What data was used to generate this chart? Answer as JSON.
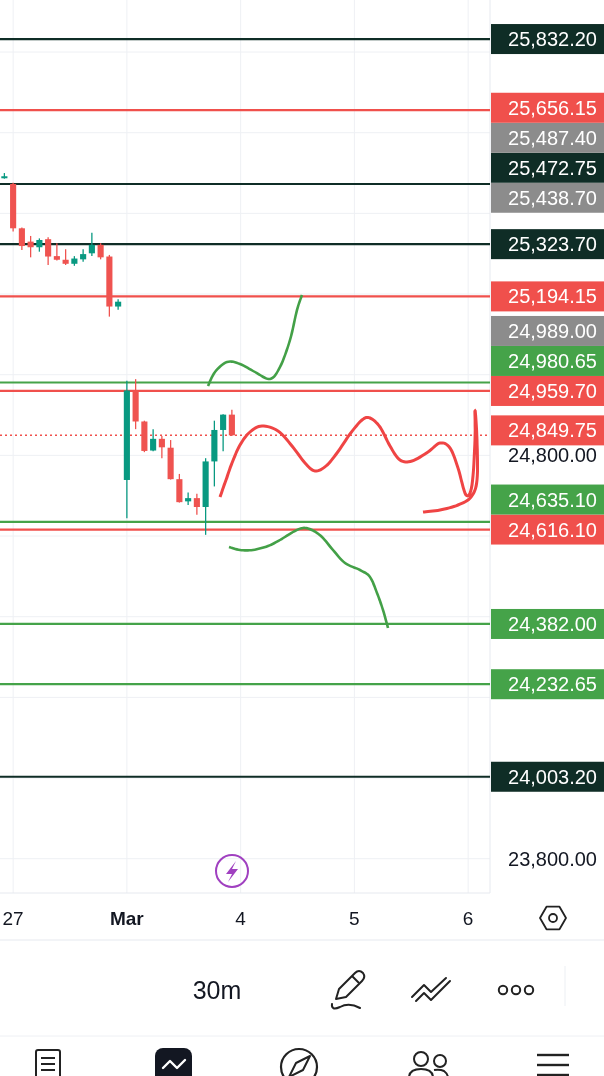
{
  "chart_data": {
    "type": "candlestick",
    "categories": [
      null,
      "27",
      null,
      null,
      null,
      null,
      null,
      null,
      null,
      null,
      null,
      null,
      null,
      null,
      "Mar",
      null,
      null,
      null,
      null,
      null,
      null,
      null,
      null,
      null,
      null,
      null,
      null,
      "4",
      null,
      null,
      null,
      null,
      null,
      null,
      null,
      null,
      null,
      null,
      null,
      null,
      "5",
      null,
      null,
      null,
      null,
      null,
      null,
      null,
      null,
      null,
      null,
      null,
      null,
      "6",
      null,
      null
    ],
    "ohlc": [
      [
        25487,
        25500,
        25486,
        25492
      ],
      [
        25473,
        25476,
        25355,
        25363
      ],
      [
        25363,
        25365,
        25309,
        25319
      ],
      [
        25330,
        25344,
        25291,
        25316
      ],
      [
        25316,
        25338,
        25305,
        25334
      ],
      [
        25336,
        25341,
        25272,
        25293
      ],
      [
        25294,
        25326,
        25283,
        25285
      ],
      [
        25285,
        25311,
        25272,
        25275
      ],
      [
        25275,
        25294,
        25270,
        25288
      ],
      [
        25286,
        25311,
        25280,
        25299
      ],
      [
        25301,
        25352,
        25294,
        25322
      ],
      [
        25322,
        25326,
        25286,
        25291
      ],
      [
        25293,
        25297,
        25144,
        25169
      ],
      [
        25169,
        25187,
        25161,
        25181
      ],
      [
        24739,
        24985,
        24644,
        24961
      ],
      [
        24961,
        24989,
        24865,
        24884
      ],
      [
        24884,
        24886,
        24808,
        24811
      ],
      [
        24812,
        24865,
        24810,
        24841
      ],
      [
        24841,
        24848,
        24793,
        24820
      ],
      [
        24819,
        24838,
        24740,
        24741
      ],
      [
        24741,
        24754,
        24683,
        24684
      ],
      [
        24686,
        24708,
        24677,
        24694
      ],
      [
        24694,
        24705,
        24653,
        24672
      ],
      [
        24672,
        24793,
        24603,
        24785
      ],
      [
        24785,
        24886,
        24723,
        24863
      ],
      [
        24863,
        24902,
        24810,
        24901
      ],
      [
        24901,
        24913,
        24848,
        24849.75
      ],
      null,
      null,
      null,
      null,
      null,
      null,
      null,
      null,
      null,
      null,
      null,
      null,
      null,
      null,
      null,
      null,
      null,
      null,
      null,
      null,
      null,
      null,
      null,
      null,
      null,
      null,
      null,
      null,
      null
    ],
    "colors": [
      "#089981",
      "#ef5350",
      "#ef5350",
      "#ef5350",
      "#089981",
      "#ef5350",
      "#ef5350",
      "#ef5350",
      "#089981",
      "#089981",
      "#089981",
      "#ef5350",
      "#ef5350",
      "#089981",
      "#089981",
      "#ef5350",
      "#ef5350",
      "#089981",
      "#ef5350",
      "#ef5350",
      "#ef5350",
      "#089981",
      "#ef5350",
      "#089981",
      "#089981",
      "#089981",
      "#ef5350",
      null,
      null,
      null,
      null,
      null,
      null,
      null,
      null,
      null,
      null,
      null,
      null,
      null,
      null,
      null,
      null,
      null,
      null,
      null,
      null,
      null,
      null,
      null,
      null,
      null,
      null,
      null,
      null,
      null
    ],
    "ylim": [
      23715,
      25929
    ],
    "yticks": [
      {
        "value": 23800,
        "label": "23,800.00"
      },
      {
        "value": 24000,
        "label": null
      },
      {
        "value": 24200,
        "label": null
      },
      {
        "value": 24400,
        "label": null
      },
      {
        "value": 24600,
        "label": null
      },
      {
        "value": 24800,
        "label": "24,800.00"
      },
      {
        "value": 25000,
        "label": null
      },
      {
        "value": 25200,
        "label": null
      },
      {
        "value": 25400,
        "label": null
      },
      {
        "value": 25600,
        "label": null
      },
      {
        "value": 25800,
        "label": null
      }
    ],
    "grid": true,
    "ref_lines": [
      {
        "axis": "y",
        "value": 25832.2,
        "label": "25,832.20",
        "color": "#0f2d26"
      },
      {
        "axis": "y",
        "value": 25656.15,
        "label": "25,656.15",
        "color": "#f0504c"
      },
      {
        "axis": "y",
        "value": 25472.75,
        "label": "25,472.75",
        "color": "#0f2d26"
      },
      {
        "axis": "y",
        "value": 25323.7,
        "label": "25,323.70",
        "color": "#0f2d26"
      },
      {
        "axis": "y",
        "value": 25194.15,
        "label": "25,194.15",
        "color": "#f0504c"
      },
      {
        "axis": "y",
        "value": 24980.65,
        "label": "24,980.65",
        "color": "#45a349"
      },
      {
        "axis": "y",
        "value": 24959.7,
        "label": "24,959.70",
        "color": "#f0504c"
      },
      {
        "axis": "y",
        "value": 24849.75,
        "label": "24,849.75",
        "color": "#f0504c",
        "line_style": "dotted"
      },
      {
        "axis": "y",
        "value": 24635.1,
        "label": "24,635.10",
        "color": "#45a349"
      },
      {
        "axis": "y",
        "value": 24616.1,
        "label": "24,616.10",
        "color": "#f0504c"
      },
      {
        "axis": "y",
        "value": 24382,
        "label": "24,382.00",
        "color": "#45a349"
      },
      {
        "axis": "y",
        "value": 24232.65,
        "label": "24,232.65",
        "color": "#45a349"
      },
      {
        "axis": "y",
        "value": 24003.2,
        "label": "24,003.20",
        "color": "#0f2d26"
      }
    ],
    "annotations": [
      "25,487.40",
      "25,438.70",
      "24,989.00",
      "30m"
    ]
  }
}
